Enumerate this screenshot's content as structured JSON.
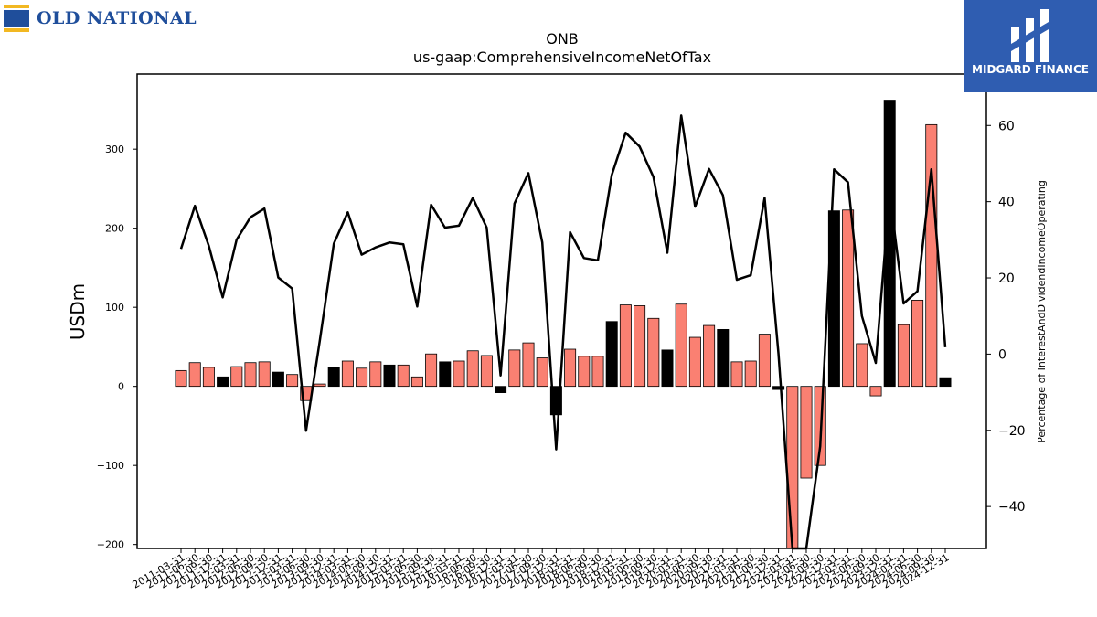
{
  "brand_left": {
    "name": "OLD NATIONAL",
    "mark_colors": [
      "#1f4e9b",
      "#f2b822"
    ]
  },
  "brand_right": {
    "name": "MIDGARD FINANCE",
    "background": "#2f5db1"
  },
  "chart_data": {
    "type": "bar",
    "title": "ONB",
    "subtitle": "us-gaap:ComprehensiveIncomeNetOfTax",
    "ylabel": "USDm",
    "y2label": "Percentage of InterestAndDividendIncomeOperating",
    "ylim": [
      -205,
      395
    ],
    "y2lim": [
      -51,
      73.5
    ],
    "yticks": [
      -200,
      -100,
      0,
      100,
      200,
      300
    ],
    "y2ticks": [
      -40,
      -20,
      0,
      20,
      40,
      60
    ],
    "colors": {
      "bar_default": "#fa8072",
      "bar_highlight": "#000000",
      "line": "#000000"
    },
    "categories": [
      "2011-03-31",
      "2011-06-30",
      "2011-09-30",
      "2011-12-31",
      "2012-03-31",
      "2012-06-30",
      "2012-09-30",
      "2012-12-31",
      "2013-03-31",
      "2013-06-30",
      "2013-09-30",
      "2013-12-31",
      "2014-03-31",
      "2014-06-30",
      "2014-09-30",
      "2014-12-31",
      "2015-03-31",
      "2015-06-30",
      "2015-09-30",
      "2015-12-31",
      "2016-03-31",
      "2016-06-30",
      "2016-09-30",
      "2016-12-31",
      "2017-03-31",
      "2017-06-30",
      "2017-09-30",
      "2017-12-31",
      "2018-03-31",
      "2018-06-30",
      "2018-09-30",
      "2018-12-31",
      "2019-03-31",
      "2019-06-30",
      "2019-09-30",
      "2019-12-31",
      "2020-03-31",
      "2020-06-30",
      "2020-09-30",
      "2020-12-31",
      "2021-03-31",
      "2021-06-30",
      "2021-09-30",
      "2021-12-31",
      "2022-03-31",
      "2022-06-30",
      "2022-09-30",
      "2022-12-31",
      "2023-03-31",
      "2023-06-30",
      "2023-09-30",
      "2023-12-31",
      "2024-03-31",
      "2024-06-30",
      "2024-09-30",
      "2024-12-31"
    ],
    "series": [
      {
        "type": "bar",
        "values": [
          20,
          30,
          24,
          12,
          25,
          30,
          31,
          18,
          15,
          -18,
          3,
          24,
          32,
          23,
          31,
          27,
          27,
          12,
          41,
          31,
          32,
          45,
          39,
          -8,
          46,
          55,
          36,
          -36,
          47,
          38,
          38,
          82,
          103,
          102,
          86,
          46,
          104,
          62,
          77,
          72,
          31,
          32,
          66,
          -4,
          -205,
          -116,
          -100,
          222,
          223,
          54,
          -12,
          362,
          78,
          109,
          331,
          11
        ],
        "highlight": [
          false,
          false,
          false,
          true,
          false,
          false,
          false,
          true,
          false,
          false,
          false,
          true,
          false,
          false,
          false,
          true,
          false,
          false,
          false,
          true,
          false,
          false,
          false,
          true,
          false,
          false,
          false,
          true,
          false,
          false,
          false,
          true,
          false,
          false,
          false,
          true,
          false,
          false,
          false,
          true,
          false,
          false,
          false,
          true,
          false,
          false,
          false,
          true,
          false,
          false,
          false,
          true,
          false,
          false,
          false,
          true
        ]
      },
      {
        "type": "line",
        "axis": "right",
        "values": [
          27.6,
          38.9,
          28.4,
          14.9,
          30,
          35.9,
          38.2,
          20.1,
          17.2,
          -20.1,
          3.8,
          29,
          37.2,
          26.1,
          28,
          29.3,
          28.8,
          12.5,
          39.2,
          33.2,
          33.7,
          41,
          33.2,
          -5.6,
          39.5,
          47.5,
          29.3,
          -25,
          32,
          25.2,
          24.6,
          47,
          58.1,
          54.5,
          46.5,
          26.6,
          62.6,
          38.7,
          48.6,
          41.7,
          19.5,
          20.7,
          41,
          0,
          -51,
          -51,
          -24.2,
          48.5,
          45.1,
          10,
          -2.3,
          42.3,
          13.3,
          16.5,
          48.5,
          1.8
        ]
      }
    ]
  }
}
